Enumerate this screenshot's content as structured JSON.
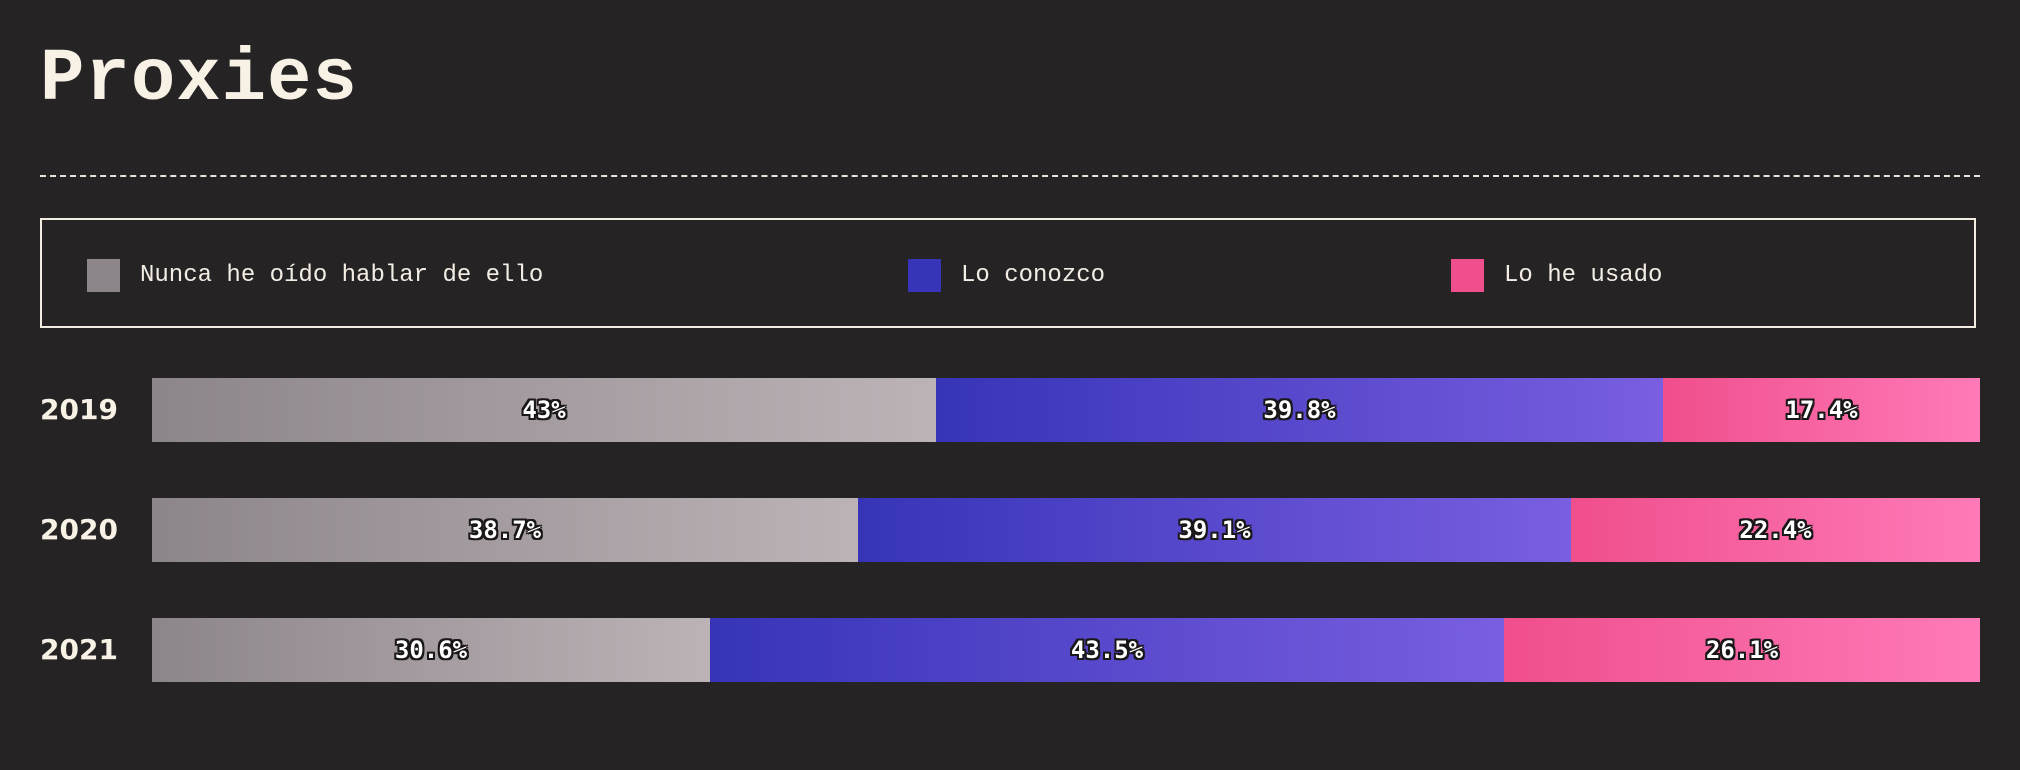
{
  "title": "Proxies",
  "legend": [
    {
      "label": "Nunca he oído hablar de ello",
      "color": "#8c8589"
    },
    {
      "label": "Lo conozco",
      "color": "#3734b8"
    },
    {
      "label": "Lo he usado",
      "color": "#ef4f8c"
    }
  ],
  "chart_data": {
    "type": "bar",
    "orientation": "horizontal",
    "stacked": "100%",
    "title": "Proxies",
    "categories": [
      "2019",
      "2020",
      "2021"
    ],
    "series": [
      {
        "name": "Nunca he oído hablar de ello",
        "values": [
          43,
          38.7,
          30.6
        ],
        "labels": [
          "43%",
          "38.7%",
          "30.6%"
        ],
        "gradient": [
          "#8c8589",
          "#bcb3b7"
        ]
      },
      {
        "name": "Lo conozco",
        "values": [
          39.8,
          39.1,
          43.5
        ],
        "labels": [
          "39.8%",
          "39.1%",
          "43.5%"
        ],
        "gradient": [
          "#3734b8",
          "#7a5ee0"
        ]
      },
      {
        "name": "Lo he usado",
        "values": [
          17.4,
          22.4,
          26.1
        ],
        "labels": [
          "17.4%",
          "22.4%",
          "26.1%"
        ],
        "gradient": [
          "#ef4f8c",
          "#ff7ab8"
        ]
      }
    ],
    "legend_position": "top",
    "grid": false
  }
}
